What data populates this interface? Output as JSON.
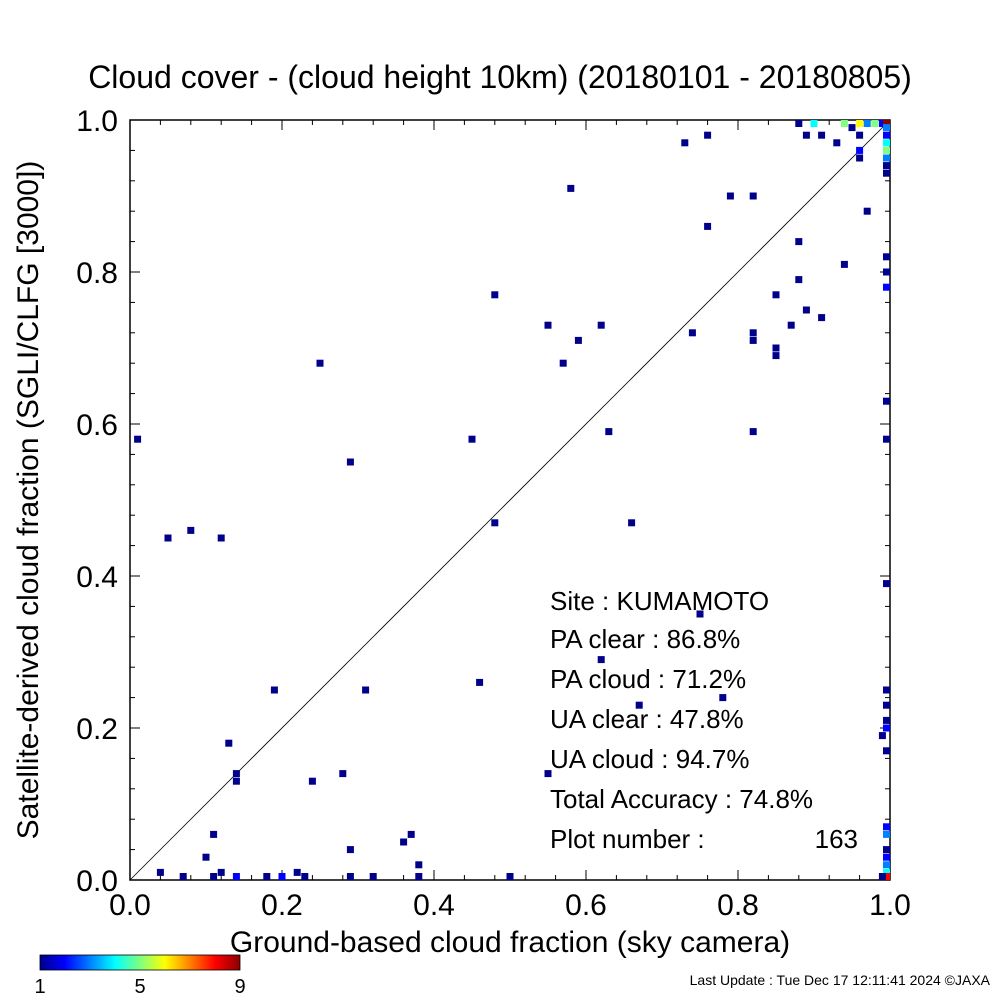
{
  "chart_data": {
    "type": "heatmap",
    "title": "Cloud cover - (cloud height 10km)  (20180101 - 20180805)",
    "xlabel": "Ground-based cloud fraction (sky camera)",
    "ylabel": "Satellite-derived cloud fraction (SGLI/CLFG [3000])",
    "xlim": [
      0.0,
      1.0
    ],
    "ylim": [
      0.0,
      1.0
    ],
    "x_ticks": [
      "0.0",
      "0.2",
      "0.4",
      "0.6",
      "0.8",
      "1.0"
    ],
    "y_ticks": [
      "0.0",
      "0.2",
      "0.4",
      "0.6",
      "0.8",
      "1.0"
    ],
    "reference_line": "1:1 diagonal",
    "grid": false,
    "colorbar": {
      "min": 1,
      "max": 9,
      "tick_labels": [
        "1",
        "5",
        "9"
      ],
      "colors": [
        "#00008b",
        "#0000ff",
        "#0080ff",
        "#00ffff",
        "#80ff80",
        "#ffff00",
        "#ff8000",
        "#ff0000",
        "#8b0000"
      ]
    },
    "points": [
      {
        "x": 0.01,
        "y": 0.58,
        "count": 1
      },
      {
        "x": 0.05,
        "y": 0.45,
        "count": 1
      },
      {
        "x": 0.08,
        "y": 0.46,
        "count": 1
      },
      {
        "x": 0.12,
        "y": 0.45,
        "count": 1
      },
      {
        "x": 0.25,
        "y": 0.68,
        "count": 1
      },
      {
        "x": 0.29,
        "y": 0.55,
        "count": 1
      },
      {
        "x": 0.45,
        "y": 0.58,
        "count": 1
      },
      {
        "x": 0.48,
        "y": 0.77,
        "count": 1
      },
      {
        "x": 0.48,
        "y": 0.47,
        "count": 1
      },
      {
        "x": 0.55,
        "y": 0.73,
        "count": 1
      },
      {
        "x": 0.57,
        "y": 0.68,
        "count": 1
      },
      {
        "x": 0.58,
        "y": 0.91,
        "count": 1
      },
      {
        "x": 0.59,
        "y": 0.71,
        "count": 1
      },
      {
        "x": 0.62,
        "y": 0.73,
        "count": 1
      },
      {
        "x": 0.63,
        "y": 0.59,
        "count": 1
      },
      {
        "x": 0.66,
        "y": 0.47,
        "count": 1
      },
      {
        "x": 0.73,
        "y": 0.97,
        "count": 1
      },
      {
        "x": 0.74,
        "y": 0.72,
        "count": 1
      },
      {
        "x": 0.76,
        "y": 0.98,
        "count": 1
      },
      {
        "x": 0.76,
        "y": 0.86,
        "count": 1
      },
      {
        "x": 0.79,
        "y": 0.9,
        "count": 1
      },
      {
        "x": 0.82,
        "y": 0.9,
        "count": 1
      },
      {
        "x": 0.82,
        "y": 0.71,
        "count": 1
      },
      {
        "x": 0.82,
        "y": 0.72,
        "count": 1
      },
      {
        "x": 0.82,
        "y": 0.59,
        "count": 1
      },
      {
        "x": 0.85,
        "y": 0.77,
        "count": 1
      },
      {
        "x": 0.85,
        "y": 0.7,
        "count": 1
      },
      {
        "x": 0.85,
        "y": 0.69,
        "count": 1
      },
      {
        "x": 0.87,
        "y": 0.73,
        "count": 1
      },
      {
        "x": 0.88,
        "y": 0.84,
        "count": 1
      },
      {
        "x": 0.88,
        "y": 0.79,
        "count": 1
      },
      {
        "x": 0.89,
        "y": 0.75,
        "count": 1
      },
      {
        "x": 0.91,
        "y": 0.74,
        "count": 1
      },
      {
        "x": 0.94,
        "y": 0.81,
        "count": 1
      },
      {
        "x": 0.97,
        "y": 0.88,
        "count": 1
      },
      {
        "x": 0.88,
        "y": 1.0,
        "count": 1
      },
      {
        "x": 0.89,
        "y": 0.98,
        "count": 1
      },
      {
        "x": 0.9,
        "y": 1.0,
        "count": 4
      },
      {
        "x": 0.91,
        "y": 0.98,
        "count": 1
      },
      {
        "x": 0.93,
        "y": 0.97,
        "count": 1
      },
      {
        "x": 0.94,
        "y": 1.0,
        "count": 5
      },
      {
        "x": 0.95,
        "y": 0.99,
        "count": 1
      },
      {
        "x": 0.96,
        "y": 1.0,
        "count": 6
      },
      {
        "x": 0.96,
        "y": 0.98,
        "count": 1
      },
      {
        "x": 0.96,
        "y": 0.96,
        "count": 2
      },
      {
        "x": 0.96,
        "y": 0.95,
        "count": 1
      },
      {
        "x": 0.97,
        "y": 1.0,
        "count": 3
      },
      {
        "x": 0.98,
        "y": 1.0,
        "count": 5
      },
      {
        "x": 0.99,
        "y": 1.0,
        "count": 2
      },
      {
        "x": 1.0,
        "y": 1.0,
        "count": 9
      },
      {
        "x": 1.0,
        "y": 0.99,
        "count": 3
      },
      {
        "x": 1.0,
        "y": 0.98,
        "count": 2
      },
      {
        "x": 1.0,
        "y": 0.97,
        "count": 4
      },
      {
        "x": 1.0,
        "y": 0.96,
        "count": 5
      },
      {
        "x": 1.0,
        "y": 0.95,
        "count": 3
      },
      {
        "x": 1.0,
        "y": 0.94,
        "count": 1
      },
      {
        "x": 1.0,
        "y": 0.93,
        "count": 1
      },
      {
        "x": 1.0,
        "y": 0.82,
        "count": 1
      },
      {
        "x": 1.0,
        "y": 0.8,
        "count": 1
      },
      {
        "x": 1.0,
        "y": 0.78,
        "count": 2
      },
      {
        "x": 1.0,
        "y": 0.63,
        "count": 1
      },
      {
        "x": 1.0,
        "y": 0.58,
        "count": 1
      },
      {
        "x": 1.0,
        "y": 0.39,
        "count": 1
      },
      {
        "x": 1.0,
        "y": 0.25,
        "count": 1
      },
      {
        "x": 1.0,
        "y": 0.23,
        "count": 1
      },
      {
        "x": 1.0,
        "y": 0.21,
        "count": 1
      },
      {
        "x": 1.0,
        "y": 0.2,
        "count": 2
      },
      {
        "x": 1.0,
        "y": 0.17,
        "count": 1
      },
      {
        "x": 0.99,
        "y": 0.19,
        "count": 1
      },
      {
        "x": 1.0,
        "y": 0.07,
        "count": 2
      },
      {
        "x": 1.0,
        "y": 0.06,
        "count": 3
      },
      {
        "x": 1.0,
        "y": 0.04,
        "count": 1
      },
      {
        "x": 1.0,
        "y": 0.03,
        "count": 2
      },
      {
        "x": 1.0,
        "y": 0.02,
        "count": 3
      },
      {
        "x": 1.0,
        "y": 0.01,
        "count": 4
      },
      {
        "x": 1.0,
        "y": 0.0,
        "count": 8
      },
      {
        "x": 0.99,
        "y": 0.0,
        "count": 1
      },
      {
        "x": 0.19,
        "y": 0.25,
        "count": 1
      },
      {
        "x": 0.13,
        "y": 0.18,
        "count": 1
      },
      {
        "x": 0.14,
        "y": 0.14,
        "count": 1
      },
      {
        "x": 0.14,
        "y": 0.13,
        "count": 1
      },
      {
        "x": 0.24,
        "y": 0.13,
        "count": 1
      },
      {
        "x": 0.28,
        "y": 0.14,
        "count": 1
      },
      {
        "x": 0.31,
        "y": 0.25,
        "count": 1
      },
      {
        "x": 0.46,
        "y": 0.26,
        "count": 1
      },
      {
        "x": 0.55,
        "y": 0.14,
        "count": 1
      },
      {
        "x": 0.62,
        "y": 0.29,
        "count": 1
      },
      {
        "x": 0.67,
        "y": 0.23,
        "count": 1
      },
      {
        "x": 0.75,
        "y": 0.35,
        "count": 1
      },
      {
        "x": 0.78,
        "y": 0.24,
        "count": 1
      },
      {
        "x": 0.11,
        "y": 0.06,
        "count": 1
      },
      {
        "x": 0.1,
        "y": 0.03,
        "count": 1
      },
      {
        "x": 0.04,
        "y": 0.01,
        "count": 1
      },
      {
        "x": 0.12,
        "y": 0.01,
        "count": 1
      },
      {
        "x": 0.29,
        "y": 0.04,
        "count": 1
      },
      {
        "x": 0.36,
        "y": 0.05,
        "count": 1
      },
      {
        "x": 0.37,
        "y": 0.06,
        "count": 1
      },
      {
        "x": 0.38,
        "y": 0.02,
        "count": 1
      },
      {
        "x": 0.22,
        "y": 0.01,
        "count": 1
      },
      {
        "x": 0.07,
        "y": 0.0,
        "count": 1
      },
      {
        "x": 0.11,
        "y": 0.0,
        "count": 1
      },
      {
        "x": 0.14,
        "y": 0.0,
        "count": 2
      },
      {
        "x": 0.18,
        "y": 0.0,
        "count": 1
      },
      {
        "x": 0.2,
        "y": 0.0,
        "count": 2
      },
      {
        "x": 0.23,
        "y": 0.0,
        "count": 1
      },
      {
        "x": 0.29,
        "y": 0.0,
        "count": 1
      },
      {
        "x": 0.32,
        "y": 0.0,
        "count": 1
      },
      {
        "x": 0.38,
        "y": 0.0,
        "count": 1
      },
      {
        "x": 0.5,
        "y": 0.0,
        "count": 1
      }
    ]
  },
  "stats": {
    "site": "Site : KUMAMOTO",
    "pa_clear": "PA clear :  86.8%",
    "pa_cloud": "PA cloud :  71.2%",
    "ua_clear": "UA clear :  47.8%",
    "ua_cloud": "UA cloud :  94.7%",
    "total_accuracy": "Total Accuracy :  74.8%",
    "plot_number_label": "Plot number :",
    "plot_number_value": "163"
  },
  "footer": {
    "last_update": "Last Update : Tue Dec 17 12:11:41 2024  ©JAXA"
  }
}
